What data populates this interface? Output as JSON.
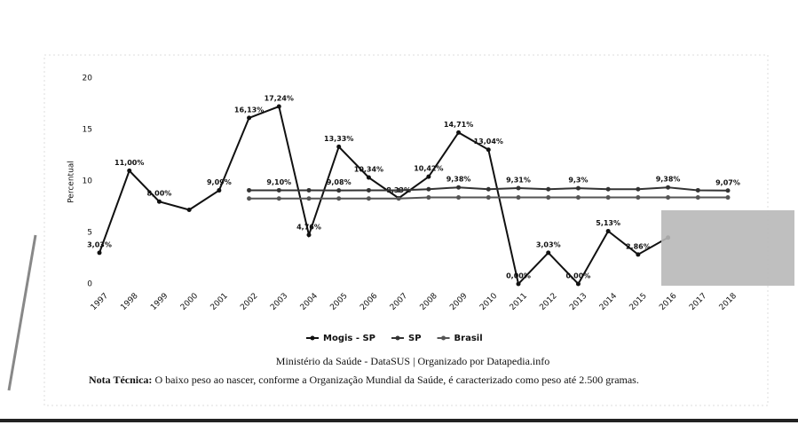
{
  "chart_data": {
    "type": "line",
    "ylabel": "Percentual",
    "categories": [
      "1997",
      "1998",
      "1999",
      "2000",
      "2001",
      "2002",
      "2003",
      "2004",
      "2005",
      "2006",
      "2007",
      "2008",
      "2009",
      "2010",
      "2011",
      "2012",
      "2013",
      "2014",
      "2015",
      "2016",
      "2017",
      "2018"
    ],
    "series": [
      {
        "name": "Mogis - SP",
        "color": "#111111",
        "values": [
          3.03,
          11.0,
          8.0,
          7.2,
          9.09,
          16.13,
          17.24,
          4.76,
          13.33,
          10.34,
          8.33,
          10.42,
          14.71,
          13.04,
          0.0,
          3.03,
          0.0,
          5.13,
          2.86,
          4.5,
          null,
          null
        ],
        "value_labels": [
          "3,03%",
          "11,00%",
          "8,00%",
          null,
          "9,09%",
          "16,13%",
          "17,24%",
          "4,76%",
          "13,33%",
          "10,34%",
          "8,33%",
          "10,42%",
          "14,71%",
          "13,04%",
          "0,00%",
          "3,03%",
          "0,00%",
          "5,13%",
          "2,86%",
          null,
          null,
          null
        ]
      },
      {
        "name": "SP",
        "color": "#333333",
        "values": [
          null,
          null,
          null,
          null,
          null,
          9.1,
          9.1,
          9.1,
          9.08,
          9.1,
          9.1,
          9.2,
          9.38,
          9.2,
          9.31,
          9.2,
          9.3,
          9.2,
          9.2,
          9.38,
          9.1,
          9.07
        ],
        "value_labels": [
          null,
          null,
          null,
          null,
          null,
          null,
          "9,10%",
          null,
          "9,08%",
          null,
          null,
          null,
          "9,38%",
          null,
          "9,31%",
          null,
          "9,3%",
          null,
          null,
          "9,38%",
          null,
          "9,07%"
        ]
      },
      {
        "name": "Brasil",
        "color": "#555555",
        "values": [
          null,
          null,
          null,
          null,
          null,
          8.3,
          8.3,
          8.3,
          8.3,
          8.3,
          8.3,
          8.4,
          8.4,
          8.4,
          8.4,
          8.4,
          8.4,
          8.4,
          8.4,
          8.4,
          8.4,
          8.4
        ]
      }
    ],
    "ylim": [
      0,
      20
    ],
    "yticks": [
      0,
      5,
      10,
      15,
      20
    ],
    "grid": false,
    "legend": "bottom",
    "source": "Ministério da Saúde - DataSUS | Organizado por Datapedia.info",
    "note_label": "Nota Técnica:",
    "note": "O baixo peso ao nascer, conforme a Organização Mundial da Saúde, é caracterizado como peso até 2.500 gramas."
  }
}
